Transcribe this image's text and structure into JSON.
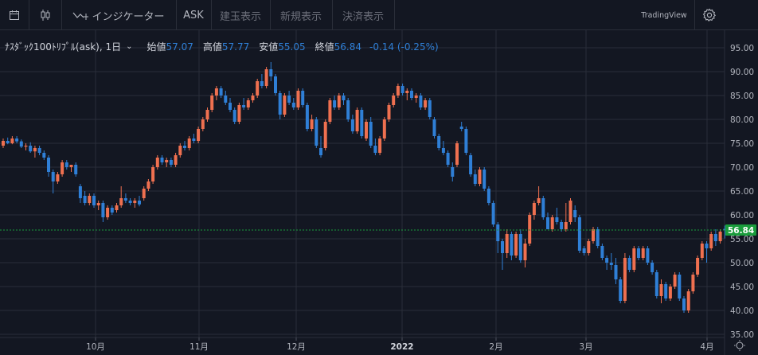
{
  "toolbar": {
    "calendar_icon": "calendar-icon",
    "candle_icon": "candlestick-icon",
    "indicator_icon": "indicator-icon",
    "indicator_label": "インジケーター",
    "ask_label": "ASK",
    "position_label": "建玉表示",
    "new_order_label": "新規表示",
    "settlement_label": "決済表示",
    "brand": "TradingView",
    "settings_icon": "gear-icon"
  },
  "legend": {
    "symbol": "ﾅｽﾀﾞｯｸ100ﾄﾘﾌﾟﾙ(ask), 1日",
    "open_label": "始値",
    "open": "57.07",
    "high_label": "高値",
    "high": "57.77",
    "low_label": "安値",
    "low": "55.05",
    "close_label": "終値",
    "close": "56.84",
    "change": "-0.14 (-0.25%)"
  },
  "price_tag": "56.84",
  "colors": {
    "background": "#131722",
    "grid": "#2a2e39",
    "up": "#ef7050",
    "down": "#2f7fd6",
    "last_price": "#1a9c3c",
    "legend_value": "#2f7fd6"
  },
  "chart_data": {
    "type": "candlestick",
    "x_ticks": [
      "10月",
      "11月",
      "12月",
      "2022",
      "2月",
      "3月",
      "4月"
    ],
    "y_ticks": [
      "95.00",
      "90.00",
      "85.00",
      "80.00",
      "75.00",
      "70.00",
      "65.00",
      "60.00",
      "55.00",
      "50.00",
      "45.00",
      "40.00",
      "35.00"
    ],
    "ylim": [
      33,
      97
    ],
    "grid": true,
    "last_price": 56.84,
    "candles": [
      [
        74.5,
        76.0,
        74.0,
        75.5
      ],
      [
        75.5,
        76.2,
        74.8,
        75.0
      ],
      [
        75.0,
        76.5,
        74.8,
        76.0
      ],
      [
        76.0,
        76.5,
        75.0,
        75.4
      ],
      [
        75.4,
        75.8,
        74.0,
        74.3
      ],
      [
        74.3,
        75.0,
        73.5,
        74.5
      ],
      [
        74.5,
        75.2,
        73.0,
        73.3
      ],
      [
        73.3,
        74.5,
        72.0,
        74.0
      ],
      [
        74.0,
        74.5,
        72.5,
        73.0
      ],
      [
        73.0,
        73.5,
        71.5,
        72.0
      ],
      [
        72.0,
        72.5,
        68.0,
        69.0
      ],
      [
        69.0,
        69.5,
        64.5,
        67.0
      ],
      [
        67.0,
        69.0,
        66.5,
        68.5
      ],
      [
        68.5,
        71.5,
        68.0,
        71.0
      ],
      [
        71.0,
        71.5,
        69.5,
        70.0
      ],
      [
        70.0,
        70.5,
        69.0,
        70.5
      ],
      [
        70.5,
        71.0,
        68.0,
        68.5
      ],
      [
        66.0,
        66.5,
        62.5,
        63.5
      ],
      [
        64.0,
        65.0,
        62.0,
        62.5
      ],
      [
        62.5,
        64.5,
        62.0,
        64.0
      ],
      [
        64.0,
        64.5,
        61.5,
        62.0
      ],
      [
        62.0,
        63.0,
        61.0,
        62.5
      ],
      [
        62.5,
        63.0,
        58.5,
        59.5
      ],
      [
        59.5,
        62.0,
        59.0,
        61.5
      ],
      [
        61.5,
        62.0,
        60.0,
        60.5
      ],
      [
        61.0,
        62.5,
        60.5,
        62.0
      ],
      [
        62.0,
        66.0,
        61.5,
        63.5
      ],
      [
        63.5,
        64.5,
        62.5,
        63.0
      ],
      [
        63.0,
        63.5,
        62.0,
        62.5
      ],
      [
        62.5,
        63.5,
        61.5,
        63.0
      ],
      [
        63.0,
        64.0,
        61.8,
        62.2
      ],
      [
        63.5,
        66.0,
        63.0,
        65.5
      ],
      [
        65.5,
        67.5,
        65.0,
        67.0
      ],
      [
        67.0,
        70.5,
        66.5,
        70.0
      ],
      [
        70.0,
        72.5,
        69.5,
        72.0
      ],
      [
        72.0,
        72.5,
        70.5,
        71.0
      ],
      [
        71.0,
        72.0,
        70.0,
        71.5
      ],
      [
        71.5,
        72.0,
        70.0,
        70.5
      ],
      [
        70.5,
        73.0,
        70.0,
        72.5
      ],
      [
        72.5,
        75.0,
        72.0,
        74.5
      ],
      [
        74.5,
        75.5,
        73.5,
        74.0
      ],
      [
        74.0,
        76.5,
        73.5,
        76.0
      ],
      [
        76.0,
        77.0,
        75.0,
        75.5
      ],
      [
        75.5,
        78.5,
        75.0,
        78.0
      ],
      [
        78.0,
        80.5,
        77.5,
        80.0
      ],
      [
        80.0,
        82.5,
        79.5,
        82.0
      ],
      [
        82.0,
        85.5,
        81.5,
        85.0
      ],
      [
        85.0,
        87.0,
        84.0,
        86.5
      ],
      [
        86.5,
        87.0,
        84.5,
        85.0
      ],
      [
        85.0,
        86.0,
        83.0,
        83.5
      ],
      [
        83.5,
        84.5,
        81.5,
        82.0
      ],
      [
        82.0,
        82.5,
        79.0,
        79.5
      ],
      [
        79.5,
        83.5,
        79.0,
        83.0
      ],
      [
        83.0,
        84.5,
        82.0,
        82.5
      ],
      [
        82.5,
        84.5,
        82.0,
        84.0
      ],
      [
        84.0,
        85.5,
        83.5,
        85.0
      ],
      [
        85.0,
        88.5,
        84.5,
        88.0
      ],
      [
        88.0,
        89.5,
        86.5,
        87.0
      ],
      [
        87.0,
        91.0,
        86.5,
        90.5
      ],
      [
        90.5,
        92.0,
        88.0,
        89.0
      ],
      [
        89.0,
        89.5,
        85.0,
        85.5
      ],
      [
        85.5,
        86.0,
        80.0,
        81.0
      ],
      [
        81.0,
        85.5,
        80.5,
        85.0
      ],
      [
        85.0,
        86.0,
        83.0,
        83.5
      ],
      [
        83.5,
        84.5,
        82.0,
        82.5
      ],
      [
        82.5,
        86.5,
        82.0,
        86.0
      ],
      [
        86.0,
        86.5,
        82.5,
        83.0
      ],
      [
        83.0,
        83.5,
        77.5,
        78.0
      ],
      [
        78.0,
        81.0,
        77.5,
        80.0
      ],
      [
        80.0,
        80.5,
        74.0,
        74.5
      ],
      [
        74.0,
        76.5,
        72.0,
        72.5
      ],
      [
        74.0,
        80.0,
        73.5,
        79.5
      ],
      [
        79.5,
        84.5,
        79.0,
        84.0
      ],
      [
        84.0,
        85.0,
        82.0,
        82.5
      ],
      [
        82.5,
        85.5,
        82.0,
        85.0
      ],
      [
        85.0,
        85.5,
        83.0,
        84.0
      ],
      [
        84.0,
        84.5,
        79.5,
        80.0
      ],
      [
        80.0,
        81.0,
        77.0,
        77.5
      ],
      [
        77.5,
        82.5,
        77.0,
        82.0
      ],
      [
        82.0,
        82.5,
        76.0,
        76.5
      ],
      [
        76.0,
        80.0,
        75.5,
        79.5
      ],
      [
        79.5,
        80.5,
        74.0,
        74.5
      ],
      [
        74.5,
        76.0,
        72.5,
        73.0
      ],
      [
        73.0,
        76.5,
        72.5,
        76.0
      ],
      [
        76.0,
        80.5,
        75.5,
        80.0
      ],
      [
        80.0,
        83.5,
        79.5,
        83.0
      ],
      [
        83.0,
        85.5,
        82.5,
        85.0
      ],
      [
        85.0,
        87.5,
        84.5,
        87.0
      ],
      [
        87.0,
        87.5,
        85.0,
        85.5
      ],
      [
        85.5,
        86.5,
        84.0,
        86.0
      ],
      [
        86.0,
        86.5,
        84.0,
        84.5
      ],
      [
        84.5,
        85.5,
        83.5,
        85.0
      ],
      [
        85.0,
        85.5,
        82.0,
        82.5
      ],
      [
        82.5,
        84.5,
        82.0,
        84.0
      ],
      [
        84.0,
        84.5,
        80.0,
        80.5
      ],
      [
        80.0,
        80.5,
        76.0,
        76.5
      ],
      [
        76.5,
        77.0,
        73.5,
        74.0
      ],
      [
        74.0,
        75.5,
        72.5,
        73.0
      ],
      [
        73.0,
        73.5,
        70.0,
        70.5
      ],
      [
        70.0,
        71.0,
        67.0,
        68.0
      ],
      [
        70.5,
        75.5,
        70.0,
        75.0
      ],
      [
        78.5,
        79.5,
        77.5,
        78.0
      ],
      [
        78.0,
        78.5,
        72.5,
        73.0
      ],
      [
        72.5,
        73.0,
        68.0,
        68.5
      ],
      [
        68.5,
        69.5,
        66.0,
        66.5
      ],
      [
        66.5,
        70.0,
        66.0,
        69.5
      ],
      [
        69.5,
        70.0,
        65.0,
        65.5
      ],
      [
        65.5,
        66.0,
        62.0,
        62.5
      ],
      [
        62.5,
        63.0,
        57.5,
        58.0
      ],
      [
        58.0,
        58.5,
        52.0,
        54.5
      ],
      [
        54.5,
        55.0,
        48.5,
        52.0
      ],
      [
        52.0,
        57.0,
        51.0,
        56.0
      ],
      [
        56.0,
        56.5,
        50.5,
        51.5
      ],
      [
        51.5,
        56.5,
        51.0,
        56.0
      ],
      [
        56.0,
        57.0,
        50.0,
        50.5
      ],
      [
        50.5,
        55.0,
        49.0,
        54.0
      ],
      [
        54.0,
        60.5,
        53.5,
        60.0
      ],
      [
        60.0,
        63.0,
        59.0,
        62.5
      ],
      [
        62.5,
        66.0,
        62.0,
        63.5
      ],
      [
        63.5,
        64.0,
        59.0,
        59.5
      ],
      [
        59.5,
        60.5,
        57.0,
        57.0
      ],
      [
        57.0,
        60.0,
        56.5,
        59.5
      ],
      [
        59.5,
        61.5,
        58.0,
        58.5
      ],
      [
        58.5,
        59.0,
        56.5,
        57.0
      ],
      [
        57.0,
        62.5,
        56.5,
        58.5
      ],
      [
        58.5,
        63.5,
        58.0,
        63.0
      ],
      [
        61.0,
        62.0,
        58.5,
        59.5
      ],
      [
        59.5,
        60.0,
        52.0,
        52.5
      ],
      [
        53.0,
        53.5,
        51.5,
        52.0
      ],
      [
        52.0,
        55.0,
        51.5,
        54.5
      ],
      [
        54.5,
        57.5,
        54.0,
        57.0
      ],
      [
        57.0,
        57.5,
        53.0,
        53.5
      ],
      [
        53.5,
        54.0,
        50.5,
        51.0
      ],
      [
        51.0,
        51.5,
        48.5,
        50.0
      ],
      [
        50.0,
        52.0,
        48.5,
        49.5
      ],
      [
        49.5,
        51.0,
        45.5,
        46.5
      ],
      [
        46.5,
        47.0,
        41.5,
        42.0
      ],
      [
        42.0,
        52.0,
        41.5,
        51.0
      ],
      [
        51.0,
        51.5,
        48.0,
        48.5
      ],
      [
        48.5,
        53.5,
        48.0,
        53.0
      ],
      [
        53.0,
        53.5,
        50.5,
        51.0
      ],
      [
        51.0,
        53.5,
        50.5,
        53.0
      ],
      [
        53.0,
        53.5,
        49.5,
        50.0
      ],
      [
        50.0,
        50.5,
        47.5,
        48.0
      ],
      [
        48.0,
        48.5,
        42.5,
        43.0
      ],
      [
        43.0,
        46.5,
        41.5,
        45.5
      ],
      [
        45.5,
        46.0,
        42.0,
        42.5
      ],
      [
        42.5,
        45.5,
        42.0,
        45.0
      ],
      [
        45.0,
        48.0,
        44.5,
        47.5
      ],
      [
        47.5,
        48.0,
        42.0,
        42.5
      ],
      [
        42.5,
        43.0,
        39.5,
        40.0
      ],
      [
        40.0,
        44.5,
        39.5,
        44.0
      ],
      [
        44.0,
        48.0,
        43.5,
        47.5
      ],
      [
        47.5,
        51.5,
        47.0,
        51.0
      ],
      [
        51.0,
        54.5,
        50.5,
        54.0
      ],
      [
        54.0,
        54.5,
        50.0,
        53.0
      ],
      [
        53.0,
        56.5,
        52.5,
        56.0
      ],
      [
        56.0,
        57.0,
        53.5,
        54.5
      ],
      [
        54.5,
        57.0,
        54.0,
        56.5
      ],
      [
        57.07,
        57.77,
        55.05,
        56.84
      ]
    ]
  }
}
